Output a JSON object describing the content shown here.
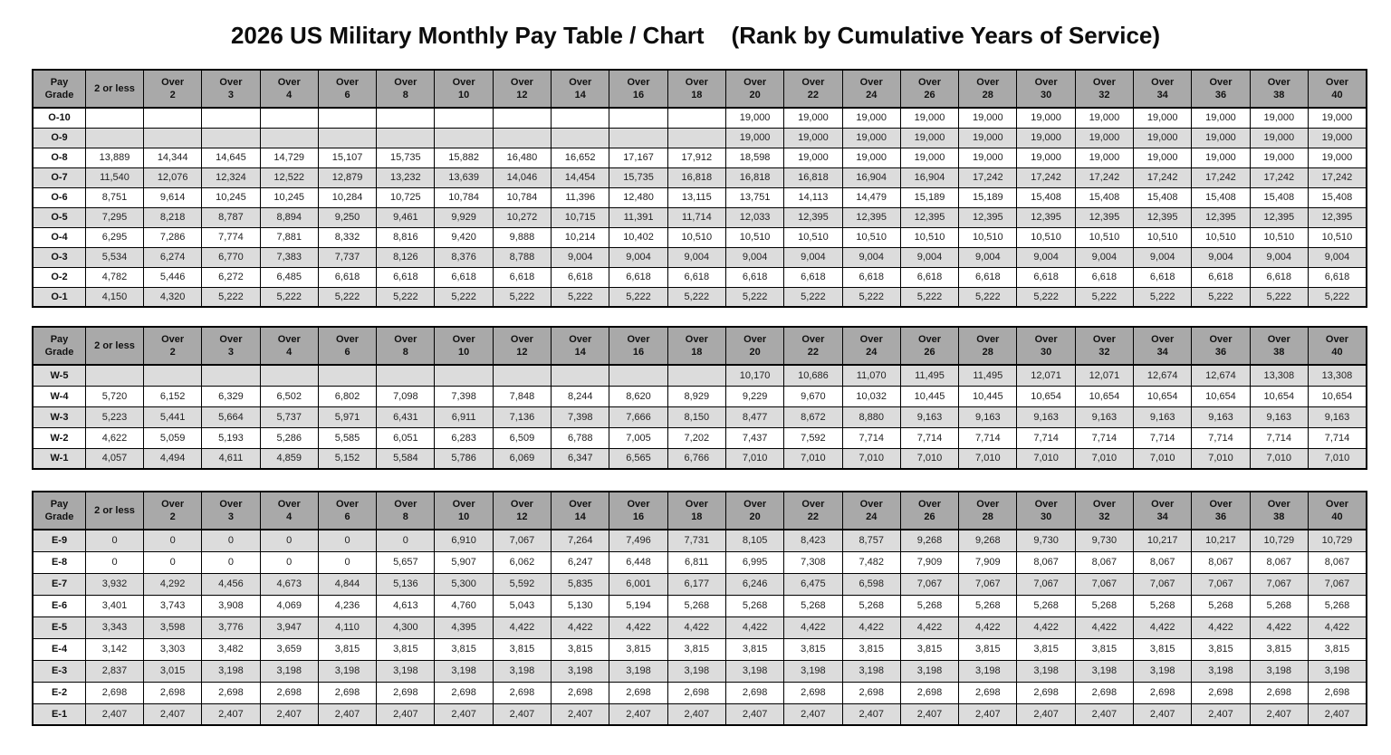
{
  "page": {
    "title_main": "2026 US Military Monthly Pay Table / Chart",
    "title_sub": "(Rank by Cumulative Years of Service)"
  },
  "colors": {
    "bg": "#ffffff",
    "text": "#111111",
    "grid": "#000000",
    "header-bg": "#a9a9a9",
    "stripe-bg": "#dcdcdc"
  },
  "columns": [
    {
      "l1": "Pay",
      "l2": "Grade"
    },
    {
      "l1": "2 or less",
      "l2": ""
    },
    {
      "l1": "Over",
      "l2": "2"
    },
    {
      "l1": "Over",
      "l2": "3"
    },
    {
      "l1": "Over",
      "l2": "4"
    },
    {
      "l1": "Over",
      "l2": "6"
    },
    {
      "l1": "Over",
      "l2": "8"
    },
    {
      "l1": "Over",
      "l2": "10"
    },
    {
      "l1": "Over",
      "l2": "12"
    },
    {
      "l1": "Over",
      "l2": "14"
    },
    {
      "l1": "Over",
      "l2": "16"
    },
    {
      "l1": "Over",
      "l2": "18"
    },
    {
      "l1": "Over",
      "l2": "20"
    },
    {
      "l1": "Over",
      "l2": "22"
    },
    {
      "l1": "Over",
      "l2": "24"
    },
    {
      "l1": "Over",
      "l2": "26"
    },
    {
      "l1": "Over",
      "l2": "28"
    },
    {
      "l1": "Over",
      "l2": "30"
    },
    {
      "l1": "Over",
      "l2": "32"
    },
    {
      "l1": "Over",
      "l2": "34"
    },
    {
      "l1": "Over",
      "l2": "36"
    },
    {
      "l1": "Over",
      "l2": "38"
    },
    {
      "l1": "Over",
      "l2": "40"
    }
  ],
  "tables": [
    {
      "name": "officer-pay",
      "first_row_shaded": false,
      "rows": [
        {
          "grade": "O-10",
          "values": [
            "",
            "",
            "",
            "",
            "",
            "",
            "",
            "",
            "",
            "",
            "",
            "19,000",
            "19,000",
            "19,000",
            "19,000",
            "19,000",
            "19,000",
            "19,000",
            "19,000",
            "19,000",
            "19,000",
            "19,000"
          ]
        },
        {
          "grade": "O-9",
          "values": [
            "",
            "",
            "",
            "",
            "",
            "",
            "",
            "",
            "",
            "",
            "",
            "19,000",
            "19,000",
            "19,000",
            "19,000",
            "19,000",
            "19,000",
            "19,000",
            "19,000",
            "19,000",
            "19,000",
            "19,000"
          ]
        },
        {
          "grade": "O-8",
          "values": [
            "13,889",
            "14,344",
            "14,645",
            "14,729",
            "15,107",
            "15,735",
            "15,882",
            "16,480",
            "16,652",
            "17,167",
            "17,912",
            "18,598",
            "19,000",
            "19,000",
            "19,000",
            "19,000",
            "19,000",
            "19,000",
            "19,000",
            "19,000",
            "19,000",
            "19,000"
          ]
        },
        {
          "grade": "O-7",
          "values": [
            "11,540",
            "12,076",
            "12,324",
            "12,522",
            "12,879",
            "13,232",
            "13,639",
            "14,046",
            "14,454",
            "15,735",
            "16,818",
            "16,818",
            "16,818",
            "16,904",
            "16,904",
            "17,242",
            "17,242",
            "17,242",
            "17,242",
            "17,242",
            "17,242",
            "17,242"
          ]
        },
        {
          "grade": "O-6",
          "values": [
            "8,751",
            "9,614",
            "10,245",
            "10,245",
            "10,284",
            "10,725",
            "10,784",
            "10,784",
            "11,396",
            "12,480",
            "13,115",
            "13,751",
            "14,113",
            "14,479",
            "15,189",
            "15,189",
            "15,408",
            "15,408",
            "15,408",
            "15,408",
            "15,408",
            "15,408"
          ]
        },
        {
          "grade": "O-5",
          "values": [
            "7,295",
            "8,218",
            "8,787",
            "8,894",
            "9,250",
            "9,461",
            "9,929",
            "10,272",
            "10,715",
            "11,391",
            "11,714",
            "12,033",
            "12,395",
            "12,395",
            "12,395",
            "12,395",
            "12,395",
            "12,395",
            "12,395",
            "12,395",
            "12,395",
            "12,395"
          ]
        },
        {
          "grade": "O-4",
          "values": [
            "6,295",
            "7,286",
            "7,774",
            "7,881",
            "8,332",
            "8,816",
            "9,420",
            "9,888",
            "10,214",
            "10,402",
            "10,510",
            "10,510",
            "10,510",
            "10,510",
            "10,510",
            "10,510",
            "10,510",
            "10,510",
            "10,510",
            "10,510",
            "10,510",
            "10,510"
          ]
        },
        {
          "grade": "O-3",
          "values": [
            "5,534",
            "6,274",
            "6,770",
            "7,383",
            "7,737",
            "8,126",
            "8,376",
            "8,788",
            "9,004",
            "9,004",
            "9,004",
            "9,004",
            "9,004",
            "9,004",
            "9,004",
            "9,004",
            "9,004",
            "9,004",
            "9,004",
            "9,004",
            "9,004",
            "9,004"
          ]
        },
        {
          "grade": "O-2",
          "values": [
            "4,782",
            "5,446",
            "6,272",
            "6,485",
            "6,618",
            "6,618",
            "6,618",
            "6,618",
            "6,618",
            "6,618",
            "6,618",
            "6,618",
            "6,618",
            "6,618",
            "6,618",
            "6,618",
            "6,618",
            "6,618",
            "6,618",
            "6,618",
            "6,618",
            "6,618"
          ]
        },
        {
          "grade": "O-1",
          "values": [
            "4,150",
            "4,320",
            "5,222",
            "5,222",
            "5,222",
            "5,222",
            "5,222",
            "5,222",
            "5,222",
            "5,222",
            "5,222",
            "5,222",
            "5,222",
            "5,222",
            "5,222",
            "5,222",
            "5,222",
            "5,222",
            "5,222",
            "5,222",
            "5,222",
            "5,222"
          ]
        }
      ]
    },
    {
      "name": "warrant-pay",
      "first_row_shaded": true,
      "rows": [
        {
          "grade": "W-5",
          "values": [
            "",
            "",
            "",
            "",
            "",
            "",
            "",
            "",
            "",
            "",
            "",
            "10,170",
            "10,686",
            "11,070",
            "11,495",
            "11,495",
            "12,071",
            "12,071",
            "12,674",
            "12,674",
            "13,308",
            "13,308"
          ]
        },
        {
          "grade": "W-4",
          "values": [
            "5,720",
            "6,152",
            "6,329",
            "6,502",
            "6,802",
            "7,098",
            "7,398",
            "7,848",
            "8,244",
            "8,620",
            "8,929",
            "9,229",
            "9,670",
            "10,032",
            "10,445",
            "10,445",
            "10,654",
            "10,654",
            "10,654",
            "10,654",
            "10,654",
            "10,654"
          ]
        },
        {
          "grade": "W-3",
          "values": [
            "5,223",
            "5,441",
            "5,664",
            "5,737",
            "5,971",
            "6,431",
            "6,911",
            "7,136",
            "7,398",
            "7,666",
            "8,150",
            "8,477",
            "8,672",
            "8,880",
            "9,163",
            "9,163",
            "9,163",
            "9,163",
            "9,163",
            "9,163",
            "9,163",
            "9,163"
          ]
        },
        {
          "grade": "W-2",
          "values": [
            "4,622",
            "5,059",
            "5,193",
            "5,286",
            "5,585",
            "6,051",
            "6,283",
            "6,509",
            "6,788",
            "7,005",
            "7,202",
            "7,437",
            "7,592",
            "7,714",
            "7,714",
            "7,714",
            "7,714",
            "7,714",
            "7,714",
            "7,714",
            "7,714",
            "7,714"
          ]
        },
        {
          "grade": "W-1",
          "values": [
            "4,057",
            "4,494",
            "4,611",
            "4,859",
            "5,152",
            "5,584",
            "5,786",
            "6,069",
            "6,347",
            "6,565",
            "6,766",
            "7,010",
            "7,010",
            "7,010",
            "7,010",
            "7,010",
            "7,010",
            "7,010",
            "7,010",
            "7,010",
            "7,010",
            "7,010"
          ]
        }
      ]
    },
    {
      "name": "enlisted-pay",
      "first_row_shaded": true,
      "rows": [
        {
          "grade": "E-9",
          "values": [
            "0",
            "0",
            "0",
            "0",
            "0",
            "0",
            "6,910",
            "7,067",
            "7,264",
            "7,496",
            "7,731",
            "8,105",
            "8,423",
            "8,757",
            "9,268",
            "9,268",
            "9,730",
            "9,730",
            "10,217",
            "10,217",
            "10,729",
            "10,729"
          ]
        },
        {
          "grade": "E-8",
          "values": [
            "0",
            "0",
            "0",
            "0",
            "0",
            "5,657",
            "5,907",
            "6,062",
            "6,247",
            "6,448",
            "6,811",
            "6,995",
            "7,308",
            "7,482",
            "7,909",
            "7,909",
            "8,067",
            "8,067",
            "8,067",
            "8,067",
            "8,067",
            "8,067"
          ]
        },
        {
          "grade": "E-7",
          "values": [
            "3,932",
            "4,292",
            "4,456",
            "4,673",
            "4,844",
            "5,136",
            "5,300",
            "5,592",
            "5,835",
            "6,001",
            "6,177",
            "6,246",
            "6,475",
            "6,598",
            "7,067",
            "7,067",
            "7,067",
            "7,067",
            "7,067",
            "7,067",
            "7,067",
            "7,067"
          ]
        },
        {
          "grade": "E-6",
          "values": [
            "3,401",
            "3,743",
            "3,908",
            "4,069",
            "4,236",
            "4,613",
            "4,760",
            "5,043",
            "5,130",
            "5,194",
            "5,268",
            "5,268",
            "5,268",
            "5,268",
            "5,268",
            "5,268",
            "5,268",
            "5,268",
            "5,268",
            "5,268",
            "5,268",
            "5,268"
          ]
        },
        {
          "grade": "E-5",
          "values": [
            "3,343",
            "3,598",
            "3,776",
            "3,947",
            "4,110",
            "4,300",
            "4,395",
            "4,422",
            "4,422",
            "4,422",
            "4,422",
            "4,422",
            "4,422",
            "4,422",
            "4,422",
            "4,422",
            "4,422",
            "4,422",
            "4,422",
            "4,422",
            "4,422",
            "4,422"
          ]
        },
        {
          "grade": "E-4",
          "values": [
            "3,142",
            "3,303",
            "3,482",
            "3,659",
            "3,815",
            "3,815",
            "3,815",
            "3,815",
            "3,815",
            "3,815",
            "3,815",
            "3,815",
            "3,815",
            "3,815",
            "3,815",
            "3,815",
            "3,815",
            "3,815",
            "3,815",
            "3,815",
            "3,815",
            "3,815"
          ]
        },
        {
          "grade": "E-3",
          "values": [
            "2,837",
            "3,015",
            "3,198",
            "3,198",
            "3,198",
            "3,198",
            "3,198",
            "3,198",
            "3,198",
            "3,198",
            "3,198",
            "3,198",
            "3,198",
            "3,198",
            "3,198",
            "3,198",
            "3,198",
            "3,198",
            "3,198",
            "3,198",
            "3,198",
            "3,198"
          ]
        },
        {
          "grade": "E-2",
          "values": [
            "2,698",
            "2,698",
            "2,698",
            "2,698",
            "2,698",
            "2,698",
            "2,698",
            "2,698",
            "2,698",
            "2,698",
            "2,698",
            "2,698",
            "2,698",
            "2,698",
            "2,698",
            "2,698",
            "2,698",
            "2,698",
            "2,698",
            "2,698",
            "2,698",
            "2,698"
          ]
        },
        {
          "grade": "E-1",
          "values": [
            "2,407",
            "2,407",
            "2,407",
            "2,407",
            "2,407",
            "2,407",
            "2,407",
            "2,407",
            "2,407",
            "2,407",
            "2,407",
            "2,407",
            "2,407",
            "2,407",
            "2,407",
            "2,407",
            "2,407",
            "2,407",
            "2,407",
            "2,407",
            "2,407",
            "2,407"
          ]
        }
      ]
    }
  ]
}
